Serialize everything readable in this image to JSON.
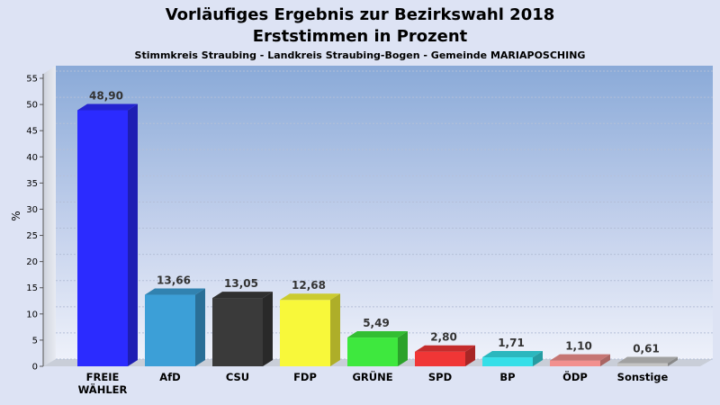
{
  "chart_data": {
    "type": "bar",
    "title": "Vorläufiges Ergebnis zur Bezirkswahl 2018",
    "title2": "Erststimmen in Prozent",
    "subtitle": "Stimmkreis Straubing - Landkreis Straubing-Bogen - Gemeinde MARIAPOSCHING",
    "ylabel": "%",
    "ylim": [
      0,
      55
    ],
    "yticks": [
      "0",
      "5",
      "10",
      "15",
      "20",
      "25",
      "30",
      "35",
      "40",
      "45",
      "50",
      "55"
    ],
    "grid": true,
    "categories": [
      [
        "FREIE",
        "WÄHLER"
      ],
      [
        "AfD"
      ],
      [
        "CSU"
      ],
      [
        "FDP"
      ],
      [
        "GRÜNE"
      ],
      [
        "SPD"
      ],
      [
        "BP"
      ],
      [
        "ÖDP"
      ],
      [
        "Sonstige"
      ]
    ],
    "values": [
      48.9,
      13.66,
      13.05,
      12.68,
      5.49,
      2.8,
      1.71,
      1.1,
      0.61
    ],
    "value_labels": [
      "48,90",
      "13,66",
      "13,05",
      "12,68",
      "5,49",
      "2,80",
      "1,71",
      "1,10",
      "0,61"
    ],
    "colors": [
      "#2b2bff",
      "#3c9fd7",
      "#3a3a3a",
      "#f8f83a",
      "#3ee83e",
      "#f03636",
      "#35dfe8",
      "#f2908e",
      "#c4c4c4"
    ]
  }
}
